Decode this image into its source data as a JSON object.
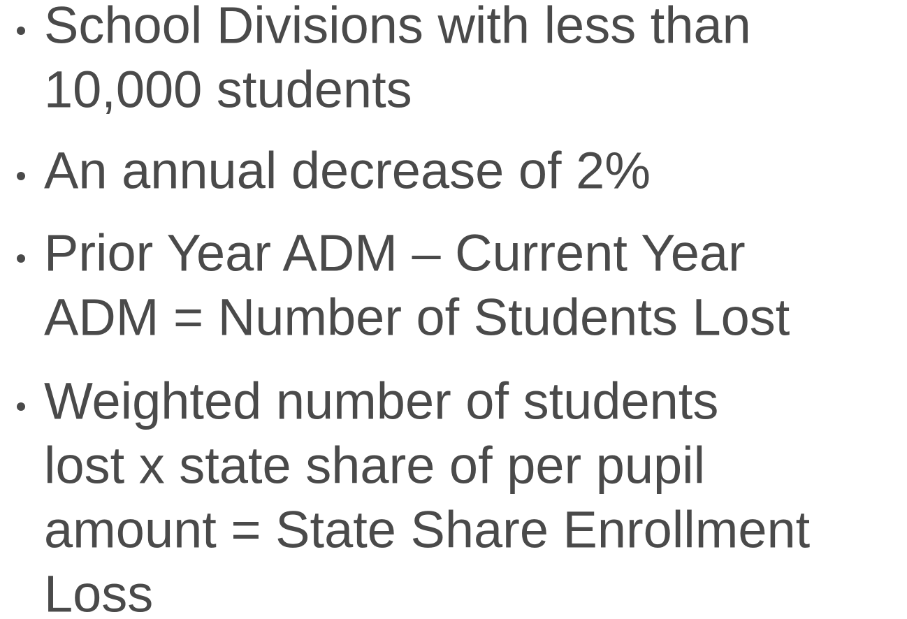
{
  "bullets": [
    [
      "School Divisions with less than",
      "10,000 students"
    ],
    [
      "An annual decrease of 2%"
    ],
    [
      "Prior Year ADM – Current Year",
      "ADM = Number of Students Lost"
    ],
    [
      "Weighted number of students",
      "lost x state share of per pupil",
      "amount = State Share Enrollment",
      "Loss"
    ]
  ]
}
